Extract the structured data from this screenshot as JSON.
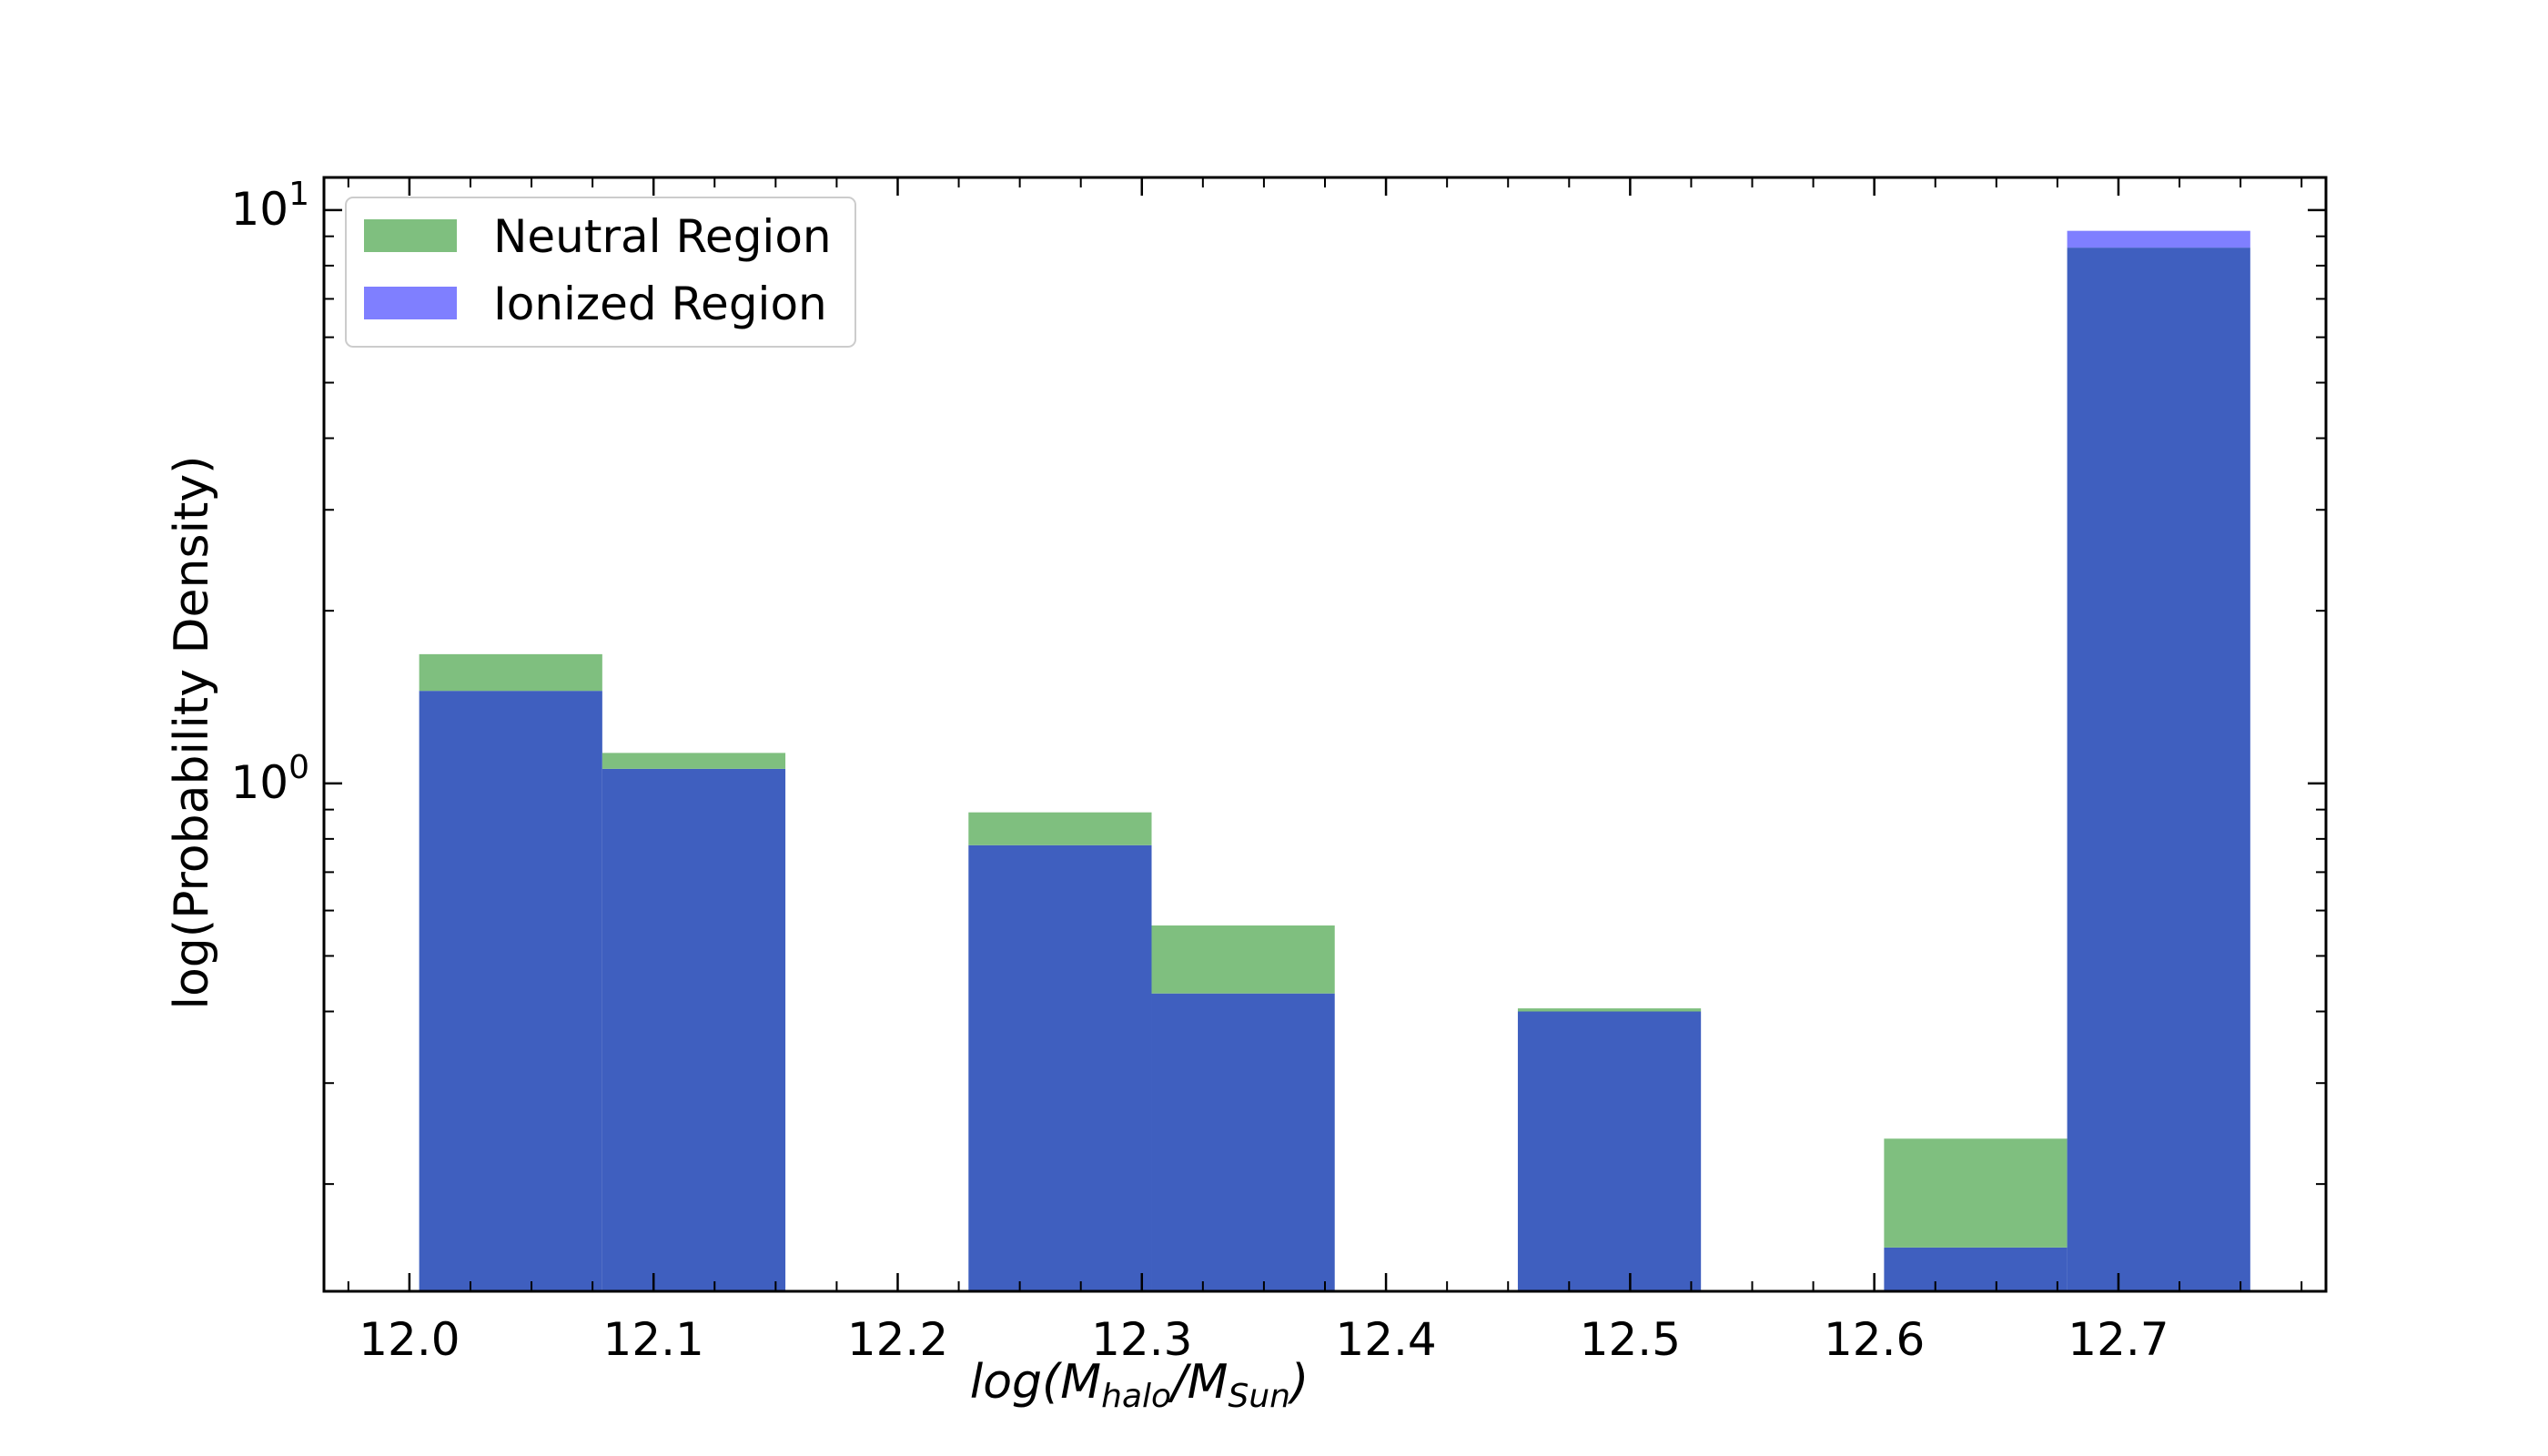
{
  "chart_data": {
    "type": "bar",
    "subtype": "overlaid-histogram",
    "title": "",
    "xlabel": {
      "base": "log(M",
      "sub1": "halo",
      "mid": "/M",
      "sub2": "Sun",
      "end": ")"
    },
    "ylabel": "log(Probability Density)",
    "yscale": "log",
    "xlim": [
      11.965,
      12.785
    ],
    "ylim": [
      0.13,
      11.4
    ],
    "grid": false,
    "legend_position": "top-left",
    "xticks": [
      {
        "value": 12.0,
        "label": "12.0"
      },
      {
        "value": 12.1,
        "label": "12.1"
      },
      {
        "value": 12.2,
        "label": "12.2"
      },
      {
        "value": 12.3,
        "label": "12.3"
      },
      {
        "value": 12.4,
        "label": "12.4"
      },
      {
        "value": 12.5,
        "label": "12.5"
      },
      {
        "value": 12.6,
        "label": "12.6"
      },
      {
        "value": 12.7,
        "label": "12.7"
      }
    ],
    "yticks_major": [
      {
        "value": 1,
        "base": "10",
        "exp": "0"
      },
      {
        "value": 10,
        "base": "10",
        "exp": "1"
      }
    ],
    "series": [
      {
        "name": "Neutral Region",
        "color": "#7fbf7f",
        "bins": [
          {
            "x0": 12.004,
            "x1": 12.079,
            "value": 1.68
          },
          {
            "x0": 12.079,
            "x1": 12.154,
            "value": 1.13
          },
          {
            "x0": 12.229,
            "x1": 12.304,
            "value": 0.89
          },
          {
            "x0": 12.304,
            "x1": 12.379,
            "value": 0.565
          },
          {
            "x0": 12.454,
            "x1": 12.529,
            "value": 0.405
          },
          {
            "x0": 12.604,
            "x1": 12.679,
            "value": 0.24
          },
          {
            "x0": 12.679,
            "x1": 12.754,
            "value": 8.6
          }
        ]
      },
      {
        "name": "Ionized Region",
        "color": "#7f7fff",
        "bins": [
          {
            "x0": 12.004,
            "x1": 12.079,
            "value": 1.45
          },
          {
            "x0": 12.079,
            "x1": 12.154,
            "value": 1.06
          },
          {
            "x0": 12.229,
            "x1": 12.304,
            "value": 0.78
          },
          {
            "x0": 12.304,
            "x1": 12.379,
            "value": 0.43
          },
          {
            "x0": 12.454,
            "x1": 12.529,
            "value": 0.4
          },
          {
            "x0": 12.604,
            "x1": 12.679,
            "value": 0.155
          },
          {
            "x0": 12.679,
            "x1": 12.754,
            "value": 9.2
          }
        ]
      }
    ],
    "overlap_color": "#3f5fbf"
  }
}
